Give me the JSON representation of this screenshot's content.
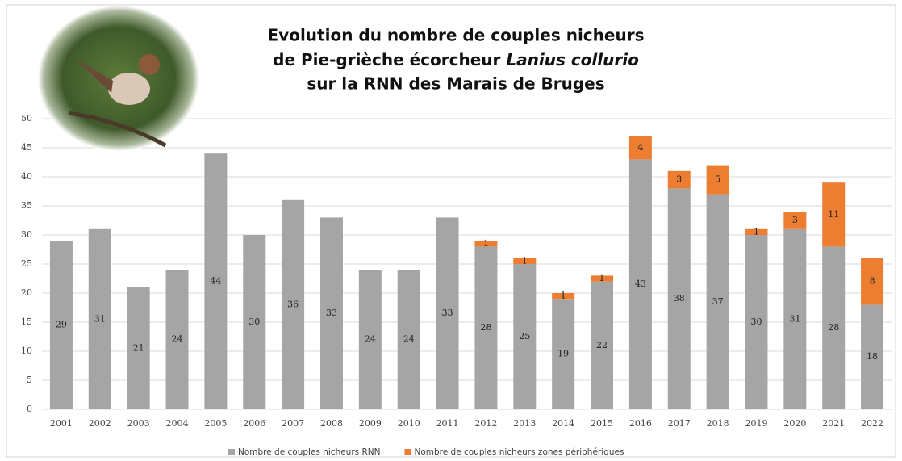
{
  "chart_data": {
    "type": "stacked-bar",
    "title": [
      "Evolution du nombre de couples nicheurs",
      "de Pie-grièche écorcheur",
      "Lanius collurio",
      "sur la RNN des Marais de Bruges"
    ],
    "categories": [
      "2001",
      "2002",
      "2003",
      "2004",
      "2005",
      "2006",
      "2007",
      "2008",
      "2009",
      "2010",
      "2011",
      "2012",
      "2013",
      "2014",
      "2015",
      "2016",
      "2017",
      "2018",
      "2019",
      "2020",
      "2021",
      "2022"
    ],
    "series": [
      {
        "name": "Nombre de couples nicheurs RNN",
        "color": "#a5a5a5",
        "values": [
          29,
          31,
          21,
          24,
          44,
          30,
          36,
          33,
          24,
          24,
          33,
          28,
          25,
          19,
          22,
          43,
          38,
          37,
          30,
          31,
          28,
          18
        ]
      },
      {
        "name": "Nombre de couples nicheurs zones périphériques",
        "color": "#ed7d31",
        "values": [
          null,
          null,
          null,
          null,
          null,
          null,
          null,
          null,
          null,
          null,
          null,
          1,
          1,
          1,
          1,
          4,
          3,
          5,
          1,
          3,
          11,
          8
        ]
      }
    ],
    "ylim": [
      0,
      50
    ],
    "yticks": [
      0,
      5,
      10,
      15,
      20,
      25,
      30,
      35,
      40,
      45,
      50
    ],
    "grid": true
  }
}
